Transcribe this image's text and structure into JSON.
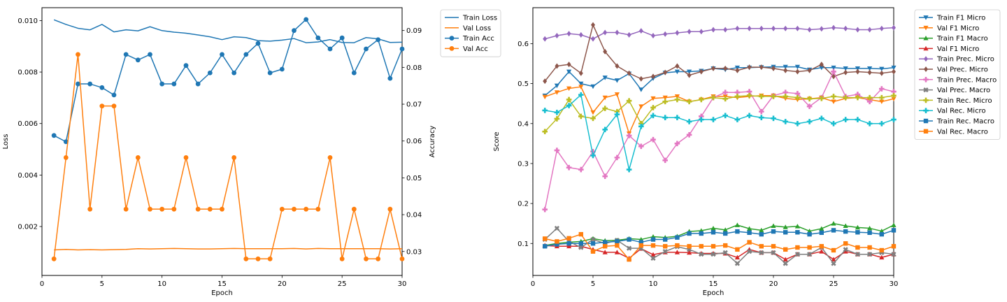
{
  "chart_data": [
    {
      "type": "line",
      "xlabel": "Epoch",
      "ylabel": "Loss",
      "y2label": "Accuracy",
      "xlim": [
        0,
        30
      ],
      "ylim": [
        0.0001,
        0.0105
      ],
      "y2lim": [
        0.0235,
        0.0962
      ],
      "xticks": [
        0,
        5,
        10,
        15,
        20,
        25,
        30
      ],
      "yticks": [
        0.002,
        0.004,
        0.006,
        0.008,
        0.01
      ],
      "ytick_labels": [
        "0.002",
        "0.004",
        "0.006",
        "0.008",
        "0.010"
      ],
      "y2ticks": [
        0.03,
        0.04,
        0.05,
        0.06,
        0.07,
        0.08,
        0.09
      ],
      "y2tick_labels": [
        "0.03",
        "0.04",
        "0.05",
        "0.06",
        "0.07",
        "0.08",
        "0.09"
      ],
      "grid": false,
      "legend_position": "outside-top-right",
      "x": [
        1,
        2,
        3,
        4,
        5,
        6,
        7,
        8,
        9,
        10,
        11,
        12,
        13,
        14,
        15,
        16,
        17,
        18,
        19,
        20,
        21,
        22,
        23,
        24,
        25,
        26,
        27,
        28,
        29,
        30
      ],
      "series": [
        {
          "name": "Train Loss",
          "axis": "left",
          "color": "#1f77b4",
          "marker": "none",
          "values": [
            0.01003,
            0.00985,
            0.0097,
            0.00964,
            0.00985,
            0.00956,
            0.00964,
            0.0096,
            0.00976,
            0.00961,
            0.00955,
            0.00951,
            0.00944,
            0.00937,
            0.00926,
            0.00937,
            0.00934,
            0.00922,
            0.0092,
            0.00924,
            0.0093,
            0.00914,
            0.00917,
            0.00926,
            0.00915,
            0.00914,
            0.00934,
            0.00929,
            0.00915,
            0.00916
          ]
        },
        {
          "name": "Val Loss",
          "axis": "left",
          "color": "#ff7f0e",
          "marker": "none",
          "values": [
            0.00109,
            0.00111,
            0.00109,
            0.0011,
            0.00109,
            0.0011,
            0.00111,
            0.00114,
            0.00113,
            0.00114,
            0.00115,
            0.00114,
            0.00113,
            0.00113,
            0.00114,
            0.00115,
            0.00114,
            0.00114,
            0.00114,
            0.00114,
            0.00115,
            0.00113,
            0.00115,
            0.00114,
            0.00114,
            0.00114,
            0.00114,
            0.00114,
            0.00113,
            0.00114
          ]
        },
        {
          "name": "Train Acc",
          "axis": "right",
          "color": "#1f77b4",
          "marker": "circle",
          "values": [
            0.0615,
            0.0598,
            0.0755,
            0.0755,
            0.0745,
            0.0725,
            0.0835,
            0.082,
            0.0835,
            0.0755,
            0.0755,
            0.0805,
            0.0755,
            0.0785,
            0.0835,
            0.0785,
            0.0835,
            0.0865,
            0.0785,
            0.0795,
            0.09,
            0.093,
            0.088,
            0.085,
            0.088,
            0.0785,
            0.085,
            0.0875,
            0.077,
            0.085
          ]
        },
        {
          "name": "Val Acc",
          "axis": "right",
          "color": "#ff7f0e",
          "marker": "circle",
          "values": [
            0.028,
            0.0555,
            0.0835,
            0.0415,
            0.0695,
            0.0695,
            0.0415,
            0.0555,
            0.0415,
            0.0415,
            0.0415,
            0.0555,
            0.0415,
            0.0415,
            0.0415,
            0.0555,
            0.028,
            0.028,
            0.028,
            0.0415,
            0.0415,
            0.0415,
            0.0415,
            0.0555,
            0.028,
            0.0415,
            0.028,
            0.028,
            0.0415,
            0.028
          ]
        }
      ]
    },
    {
      "type": "line",
      "xlabel": "Epoch",
      "ylabel": "Score",
      "xlim": [
        0,
        30
      ],
      "ylim": [
        0.02,
        0.69
      ],
      "xticks": [
        0,
        5,
        10,
        15,
        20,
        25,
        30
      ],
      "yticks": [
        0.1,
        0.2,
        0.3,
        0.4,
        0.5,
        0.6
      ],
      "ytick_labels": [
        "0.1",
        "0.2",
        "0.3",
        "0.4",
        "0.5",
        "0.6"
      ],
      "grid": false,
      "legend_position": "outside-top-right",
      "x": [
        1,
        2,
        3,
        4,
        5,
        6,
        7,
        8,
        9,
        10,
        11,
        12,
        13,
        14,
        15,
        16,
        17,
        18,
        19,
        20,
        21,
        22,
        23,
        24,
        25,
        26,
        27,
        28,
        29,
        30
      ],
      "series": [
        {
          "name": "Train F1 Micro",
          "color": "#1f77b4",
          "marker": "triangle-down",
          "values": [
            0.47,
            0.495,
            0.53,
            0.5,
            0.493,
            0.515,
            0.508,
            0.525,
            0.485,
            0.513,
            0.527,
            0.53,
            0.53,
            0.532,
            0.538,
            0.535,
            0.54,
            0.54,
            0.541,
            0.542,
            0.542,
            0.542,
            0.535,
            0.54,
            0.54,
            0.538,
            0.538,
            0.538,
            0.537,
            0.54
          ]
        },
        {
          "name": "Val F1 Micro",
          "color": "#ff7f0e",
          "marker": "triangle-down",
          "values": [
            0.467,
            0.478,
            0.488,
            0.492,
            0.428,
            0.465,
            0.473,
            0.375,
            0.443,
            0.463,
            0.465,
            0.468,
            0.455,
            0.46,
            0.468,
            0.468,
            0.465,
            0.468,
            0.47,
            0.47,
            0.463,
            0.46,
            0.462,
            0.465,
            0.455,
            0.463,
            0.465,
            0.46,
            0.455,
            0.462
          ]
        },
        {
          "name": "Train F1 Macro",
          "color": "#2ca02c",
          "marker": "triangle-up",
          "values": [
            0.095,
            0.1,
            0.103,
            0.105,
            0.112,
            0.107,
            0.108,
            0.112,
            0.11,
            0.117,
            0.115,
            0.118,
            0.13,
            0.132,
            0.138,
            0.134,
            0.146,
            0.137,
            0.133,
            0.144,
            0.141,
            0.143,
            0.131,
            0.137,
            0.15,
            0.144,
            0.14,
            0.138,
            0.131,
            0.146
          ]
        },
        {
          "name": "Val F1 Micro",
          "color": "#d62728",
          "marker": "triangle-up",
          "values": [
            0.095,
            0.093,
            0.093,
            0.093,
            0.085,
            0.078,
            0.078,
            0.063,
            0.087,
            0.072,
            0.078,
            0.078,
            0.077,
            0.075,
            0.075,
            0.075,
            0.065,
            0.085,
            0.077,
            0.077,
            0.06,
            0.073,
            0.073,
            0.08,
            0.06,
            0.08,
            0.073,
            0.073,
            0.065,
            0.073
          ]
        },
        {
          "name": "Train Prec. Micro",
          "color": "#9467bd",
          "marker": "diamond",
          "values": [
            0.612,
            0.62,
            0.625,
            0.622,
            0.612,
            0.628,
            0.628,
            0.622,
            0.632,
            0.62,
            0.624,
            0.627,
            0.63,
            0.63,
            0.635,
            0.635,
            0.638,
            0.638,
            0.638,
            0.638,
            0.638,
            0.638,
            0.635,
            0.637,
            0.64,
            0.638,
            0.635,
            0.635,
            0.638,
            0.64
          ]
        },
        {
          "name": "Val Prec. Micro",
          "color": "#8c564b",
          "marker": "diamond",
          "values": [
            0.506,
            0.544,
            0.548,
            0.526,
            0.647,
            0.58,
            0.544,
            0.526,
            0.512,
            0.518,
            0.528,
            0.544,
            0.521,
            0.53,
            0.538,
            0.538,
            0.533,
            0.541,
            0.541,
            0.538,
            0.533,
            0.53,
            0.533,
            0.548,
            0.518,
            0.528,
            0.53,
            0.528,
            0.526,
            0.53
          ]
        },
        {
          "name": "Train Prec. Macro",
          "color": "#e377c2",
          "marker": "plus-filled",
          "values": [
            0.185,
            0.333,
            0.29,
            0.285,
            0.33,
            0.268,
            0.315,
            0.37,
            0.343,
            0.36,
            0.308,
            0.35,
            0.372,
            0.418,
            0.465,
            0.478,
            0.478,
            0.48,
            0.43,
            0.47,
            0.478,
            0.475,
            0.443,
            0.465,
            0.53,
            0.468,
            0.473,
            0.455,
            0.487,
            0.48
          ]
        },
        {
          "name": "Val Prec. Macro",
          "color": "#7f7f7f",
          "marker": "x-filled",
          "values": [
            0.11,
            0.138,
            0.105,
            0.09,
            0.11,
            0.1,
            0.108,
            0.088,
            0.088,
            0.063,
            0.08,
            0.092,
            0.085,
            0.073,
            0.073,
            0.077,
            0.05,
            0.08,
            0.077,
            0.077,
            0.05,
            0.073,
            0.073,
            0.09,
            0.05,
            0.085,
            0.073,
            0.073,
            0.077,
            0.073
          ]
        },
        {
          "name": "Train Rec. Micro",
          "color": "#bcbd22",
          "marker": "plus-filled",
          "values": [
            0.38,
            0.412,
            0.46,
            0.418,
            0.413,
            0.438,
            0.43,
            0.457,
            0.4,
            0.44,
            0.455,
            0.46,
            0.455,
            0.46,
            0.465,
            0.462,
            0.468,
            0.47,
            0.468,
            0.468,
            0.468,
            0.465,
            0.462,
            0.463,
            0.468,
            0.465,
            0.465,
            0.465,
            0.465,
            0.47
          ]
        },
        {
          "name": "Val Rec. Micro",
          "color": "#17becf",
          "marker": "plus-filled",
          "values": [
            0.433,
            0.428,
            0.445,
            0.472,
            0.32,
            0.385,
            0.423,
            0.285,
            0.393,
            0.42,
            0.415,
            0.415,
            0.405,
            0.41,
            0.41,
            0.42,
            0.41,
            0.42,
            0.415,
            0.413,
            0.405,
            0.4,
            0.405,
            0.413,
            0.4,
            0.41,
            0.41,
            0.4,
            0.4,
            0.41
          ]
        },
        {
          "name": "Train Rec. Macro",
          "color": "#1f77b4",
          "marker": "square",
          "values": [
            0.093,
            0.098,
            0.1,
            0.1,
            0.1,
            0.103,
            0.105,
            0.11,
            0.103,
            0.11,
            0.11,
            0.115,
            0.125,
            0.125,
            0.128,
            0.125,
            0.13,
            0.127,
            0.123,
            0.13,
            0.128,
            0.128,
            0.123,
            0.127,
            0.133,
            0.13,
            0.128,
            0.127,
            0.123,
            0.133
          ]
        },
        {
          "name": "Val Rec. Macro",
          "color": "#ff7f0e",
          "marker": "square",
          "values": [
            0.112,
            0.105,
            0.113,
            0.123,
            0.08,
            0.093,
            0.095,
            0.06,
            0.095,
            0.095,
            0.093,
            0.095,
            0.093,
            0.093,
            0.093,
            0.095,
            0.085,
            0.103,
            0.093,
            0.093,
            0.085,
            0.09,
            0.09,
            0.093,
            0.083,
            0.1,
            0.09,
            0.09,
            0.083,
            0.093
          ]
        }
      ]
    }
  ]
}
